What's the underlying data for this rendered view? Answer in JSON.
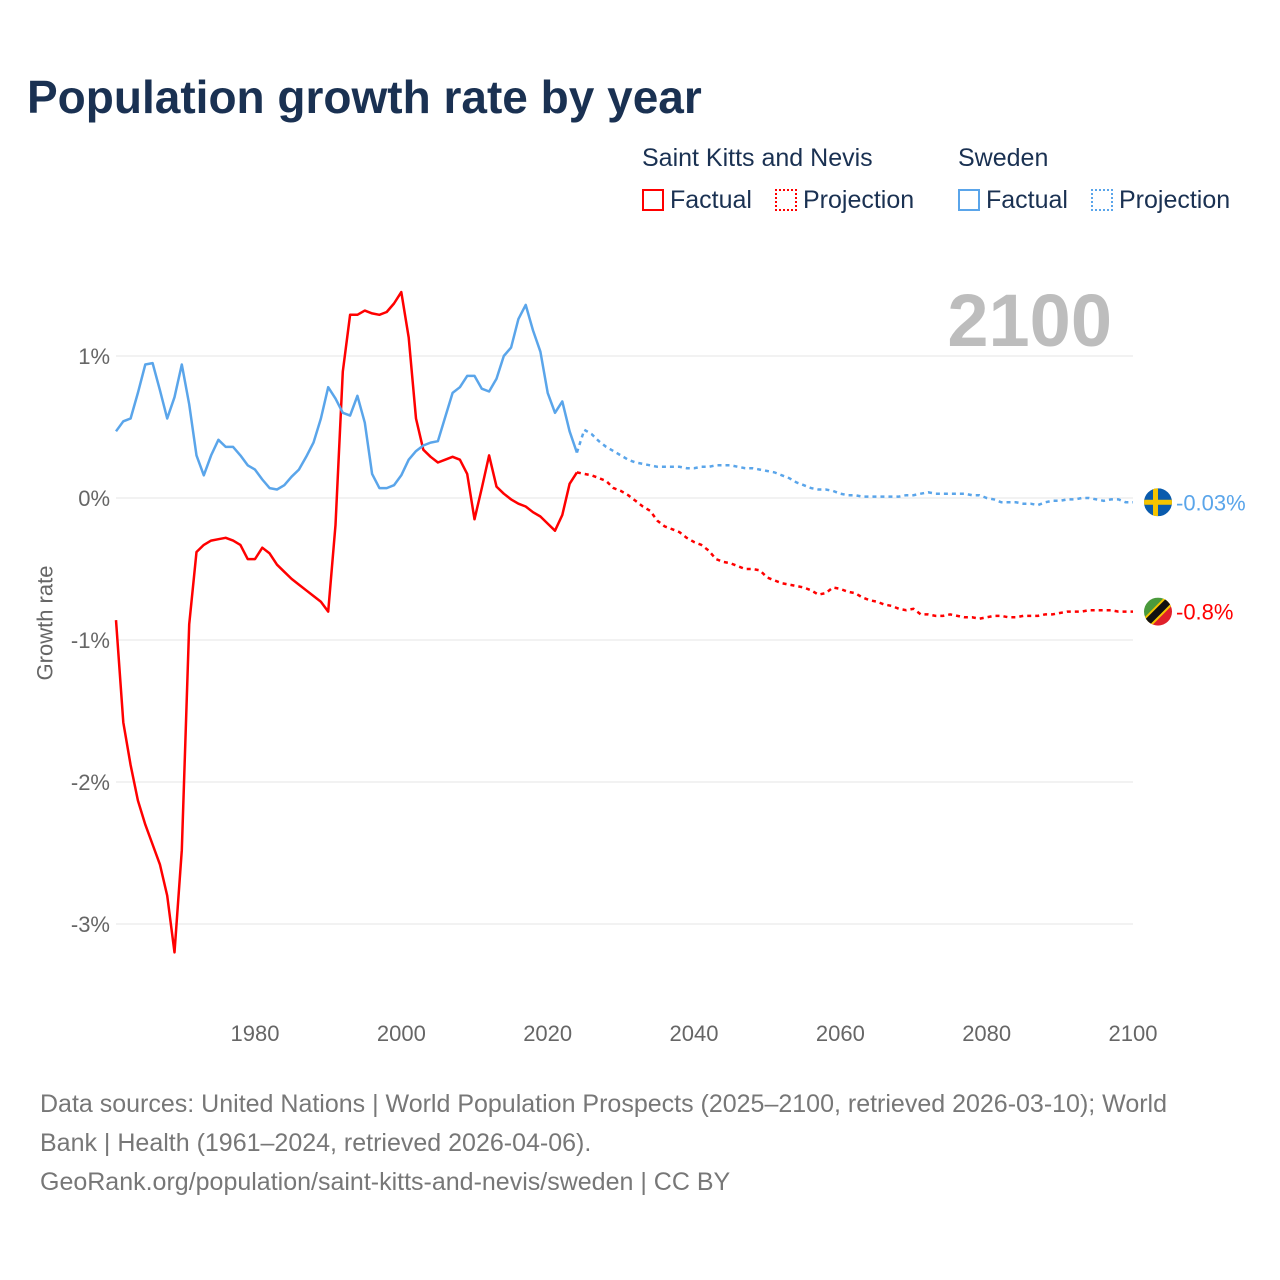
{
  "title": "Population growth rate by year",
  "legend": {
    "groups": [
      {
        "name": "Saint Kitts and Nevis",
        "color": "#ff0000",
        "factual": "Factual",
        "projection": "Projection"
      },
      {
        "name": "Sweden",
        "color": "#5aa5ea",
        "factual": "Factual",
        "projection": "Projection"
      }
    ]
  },
  "year_display": "2100",
  "footer": {
    "sources": "Data sources: United Nations | World Population Prospects (2025–2100, retrieved 2026-03-10); World Bank | Health (1961–2024, retrieved 2026-04-06).",
    "link": "GeoRank.org/population/saint-kitts-and-nevis/sweden | CC BY"
  },
  "chart_data": {
    "type": "line",
    "title": "Population growth rate by year",
    "xlabel": "",
    "ylabel": "Growth rate",
    "xlim": [
      1961,
      2100
    ],
    "ylim": [
      -3.4,
      1.6
    ],
    "xticks": [
      1980,
      2000,
      2020,
      2040,
      2060,
      2080,
      2100
    ],
    "xtick_labels": [
      "1980",
      "2000",
      "2020",
      "2040",
      "2060",
      "2080",
      "2100"
    ],
    "yticks": [
      1,
      0,
      -1,
      -2,
      -3
    ],
    "ytick_labels": [
      "1%",
      "0%",
      "-1%",
      "-2%",
      "-3%"
    ],
    "grid": true,
    "series": [
      {
        "name": "Saint Kitts and Nevis",
        "color": "#ff0000",
        "flag": "saint-kitts-and-nevis",
        "end_label": "-0.8%",
        "factual_start": 1961,
        "factual": [
          -0.86,
          -1.58,
          -1.88,
          -2.13,
          -2.3,
          -2.44,
          -2.58,
          -2.8,
          -3.2,
          -2.48,
          -0.89,
          -0.38,
          -0.33,
          -0.3,
          -0.29,
          -0.28,
          -0.3,
          -0.33,
          -0.43,
          -0.43,
          -0.35,
          -0.39,
          -0.47,
          -0.52,
          -0.57,
          -0.61,
          -0.65,
          -0.69,
          -0.73,
          -0.8,
          -0.19,
          0.89,
          1.29,
          1.29,
          1.32,
          1.3,
          1.29,
          1.31,
          1.37,
          1.45,
          1.13,
          0.56,
          0.34,
          0.29,
          0.25,
          0.27,
          0.29,
          0.27,
          0.17,
          -0.15,
          0.07,
          0.3,
          0.08,
          0.03,
          -0.01,
          -0.04,
          -0.06,
          -0.1,
          -0.13,
          -0.18,
          -0.23,
          -0.12,
          0.1,
          0.18
        ],
        "projection_start": 2025,
        "projection": [
          0.17,
          0.16,
          0.14,
          0.12,
          0.07,
          0.05,
          0.02,
          -0.02,
          -0.06,
          -0.09,
          -0.16,
          -0.2,
          -0.22,
          -0.24,
          -0.28,
          -0.31,
          -0.33,
          -0.37,
          -0.43,
          -0.45,
          -0.46,
          -0.48,
          -0.5,
          -0.5,
          -0.51,
          -0.56,
          -0.58,
          -0.6,
          -0.61,
          -0.62,
          -0.63,
          -0.65,
          -0.68,
          -0.67,
          -0.63,
          -0.64,
          -0.66,
          -0.67,
          -0.7,
          -0.72,
          -0.73,
          -0.75,
          -0.76,
          -0.78,
          -0.79,
          -0.78,
          -0.82,
          -0.82,
          -0.83,
          -0.83,
          -0.82,
          -0.83,
          -0.84,
          -0.84,
          -0.85,
          -0.84,
          -0.83,
          -0.83,
          -0.84,
          -0.84,
          -0.83,
          -0.83,
          -0.83,
          -0.82,
          -0.82,
          -0.81,
          -0.8,
          -0.8,
          -0.8,
          -0.79,
          -0.79,
          -0.79,
          -0.79,
          -0.8,
          -0.8,
          -0.8
        ]
      },
      {
        "name": "Sweden",
        "color": "#5aa5ea",
        "flag": "sweden",
        "end_label": "-0.03%",
        "factual_start": 1961,
        "factual": [
          0.47,
          0.54,
          0.56,
          0.74,
          0.94,
          0.95,
          0.76,
          0.56,
          0.71,
          0.94,
          0.66,
          0.3,
          0.16,
          0.3,
          0.41,
          0.36,
          0.36,
          0.3,
          0.23,
          0.2,
          0.13,
          0.07,
          0.06,
          0.09,
          0.15,
          0.2,
          0.29,
          0.39,
          0.56,
          0.78,
          0.7,
          0.6,
          0.58,
          0.72,
          0.53,
          0.17,
          0.07,
          0.07,
          0.09,
          0.16,
          0.27,
          0.33,
          0.37,
          0.39,
          0.4,
          0.57,
          0.74,
          0.78,
          0.86,
          0.86,
          0.77,
          0.75,
          0.84,
          1.0,
          1.06,
          1.26,
          1.36,
          1.18,
          1.03,
          0.74,
          0.6,
          0.68,
          0.47,
          0.32
        ],
        "projection_start": 2025,
        "projection": [
          0.48,
          0.45,
          0.4,
          0.36,
          0.33,
          0.3,
          0.27,
          0.25,
          0.24,
          0.23,
          0.22,
          0.22,
          0.22,
          0.22,
          0.21,
          0.21,
          0.22,
          0.22,
          0.23,
          0.23,
          0.23,
          0.22,
          0.21,
          0.21,
          0.2,
          0.19,
          0.18,
          0.16,
          0.14,
          0.11,
          0.09,
          0.07,
          0.06,
          0.06,
          0.05,
          0.03,
          0.02,
          0.02,
          0.01,
          0.01,
          0.01,
          0.01,
          0.01,
          0.01,
          0.02,
          0.02,
          0.03,
          0.04,
          0.03,
          0.03,
          0.03,
          0.03,
          0.03,
          0.02,
          0.02,
          0.0,
          -0.01,
          -0.03,
          -0.03,
          -0.03,
          -0.04,
          -0.04,
          -0.05,
          -0.03,
          -0.02,
          -0.02,
          -0.01,
          -0.01,
          0.0,
          0.0,
          -0.01,
          -0.02,
          -0.01,
          -0.01,
          -0.03,
          -0.03
        ]
      }
    ]
  }
}
